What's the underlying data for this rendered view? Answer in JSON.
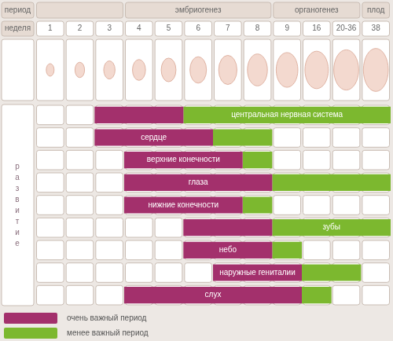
{
  "chart_data": {
    "type": "bar",
    "orientation": "horizontal",
    "legend": "bottom left",
    "period_label": "период",
    "week_label": "неделя",
    "side_label": "развитие",
    "periods": [
      {
        "label": "эмбриогенез",
        "from": "4",
        "to": "8"
      },
      {
        "label": "органогенез",
        "from": "9",
        "to": "20-36"
      },
      {
        "label": "плод",
        "from": "38",
        "to": "38"
      }
    ],
    "categories": [
      "1",
      "2",
      "3",
      "4",
      "5",
      "6",
      "7",
      "8",
      "9",
      "16",
      "20-36",
      "38"
    ],
    "rows": [
      "центральная нервная система",
      "сердце",
      "верхние конечности",
      "глаза",
      "нижние конечности",
      "зубы",
      "небо",
      "наружные гениталии",
      "слух"
    ],
    "series": [
      {
        "name": "очень важный период",
        "color": "#a3306c",
        "spans": [
          {
            "from": "3",
            "to": "5"
          },
          {
            "from": "3",
            "to": "6"
          },
          {
            "from": "4",
            "to": "7"
          },
          {
            "from": "4",
            "to": "8"
          },
          {
            "from": "4",
            "to": "7"
          },
          {
            "from": "6",
            "to": "8"
          },
          {
            "from": "6",
            "to": "8"
          },
          {
            "from": "7",
            "to": "9"
          },
          {
            "from": "4",
            "to": "9"
          }
        ]
      },
      {
        "name": "менее важный период",
        "color": "#7cb82f",
        "spans": [
          {
            "from": "6",
            "to": "38"
          },
          {
            "from": "7",
            "to": "8"
          },
          {
            "from": "8",
            "to": "8"
          },
          {
            "from": "9",
            "to": "38"
          },
          {
            "from": "8",
            "to": "8"
          },
          {
            "from": "9",
            "to": "38"
          },
          {
            "from": "9",
            "to": "9"
          },
          {
            "from": "16",
            "to": "20-36"
          },
          {
            "from": "16",
            "to": "16"
          }
        ]
      }
    ]
  }
}
